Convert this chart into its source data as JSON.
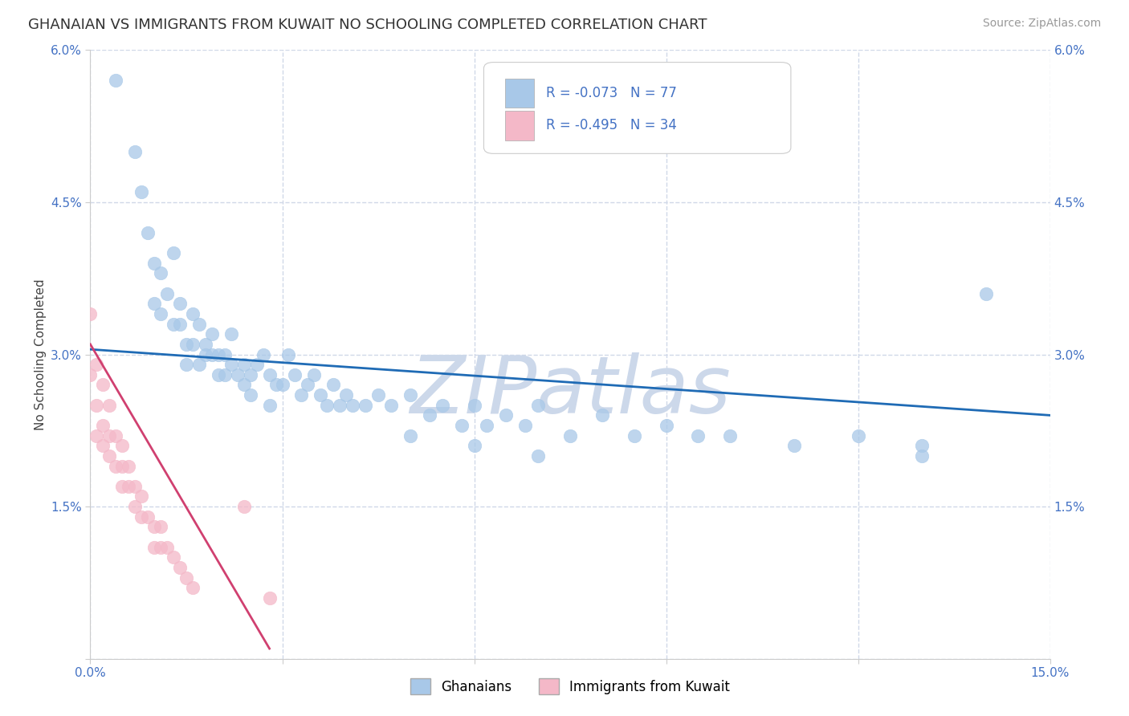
{
  "title": "GHANAIAN VS IMMIGRANTS FROM KUWAIT NO SCHOOLING COMPLETED CORRELATION CHART",
  "source": "Source: ZipAtlas.com",
  "ylabel": "No Schooling Completed",
  "xlim": [
    0,
    0.15
  ],
  "ylim": [
    0,
    0.06
  ],
  "xticks": [
    0.0,
    0.03,
    0.06,
    0.09,
    0.12,
    0.15
  ],
  "xtick_labels": [
    "0.0%",
    "",
    "",
    "",
    "",
    "15.0%"
  ],
  "yticks": [
    0.0,
    0.015,
    0.03,
    0.045,
    0.06
  ],
  "ytick_labels": [
    "",
    "1.5%",
    "3.0%",
    "4.5%",
    "6.0%"
  ],
  "blue_color": "#a8c8e8",
  "pink_color": "#f4b8c8",
  "trend_blue": "#1f6bb5",
  "trend_pink": "#d04070",
  "watermark": "ZIPatlas",
  "watermark_color": "#ccd8ea",
  "blue_x": [
    0.004,
    0.007,
    0.008,
    0.009,
    0.01,
    0.01,
    0.011,
    0.011,
    0.012,
    0.013,
    0.013,
    0.014,
    0.014,
    0.015,
    0.015,
    0.016,
    0.016,
    0.017,
    0.017,
    0.018,
    0.018,
    0.019,
    0.019,
    0.02,
    0.02,
    0.021,
    0.021,
    0.022,
    0.022,
    0.023,
    0.024,
    0.024,
    0.025,
    0.025,
    0.026,
    0.027,
    0.028,
    0.028,
    0.029,
    0.03,
    0.031,
    0.032,
    0.033,
    0.034,
    0.035,
    0.036,
    0.037,
    0.038,
    0.039,
    0.04,
    0.041,
    0.043,
    0.045,
    0.047,
    0.05,
    0.053,
    0.055,
    0.058,
    0.06,
    0.062,
    0.065,
    0.068,
    0.07,
    0.075,
    0.08,
    0.085,
    0.09,
    0.095,
    0.1,
    0.11,
    0.12,
    0.13,
    0.14,
    0.05,
    0.06,
    0.07,
    0.13
  ],
  "blue_y": [
    0.057,
    0.05,
    0.046,
    0.042,
    0.039,
    0.035,
    0.034,
    0.038,
    0.036,
    0.04,
    0.033,
    0.033,
    0.035,
    0.031,
    0.029,
    0.034,
    0.031,
    0.033,
    0.029,
    0.031,
    0.03,
    0.03,
    0.032,
    0.03,
    0.028,
    0.03,
    0.028,
    0.032,
    0.029,
    0.028,
    0.029,
    0.027,
    0.028,
    0.026,
    0.029,
    0.03,
    0.028,
    0.025,
    0.027,
    0.027,
    0.03,
    0.028,
    0.026,
    0.027,
    0.028,
    0.026,
    0.025,
    0.027,
    0.025,
    0.026,
    0.025,
    0.025,
    0.026,
    0.025,
    0.026,
    0.024,
    0.025,
    0.023,
    0.025,
    0.023,
    0.024,
    0.023,
    0.025,
    0.022,
    0.024,
    0.022,
    0.023,
    0.022,
    0.022,
    0.021,
    0.022,
    0.021,
    0.036,
    0.022,
    0.021,
    0.02,
    0.02
  ],
  "pink_x": [
    0.0,
    0.0,
    0.001,
    0.001,
    0.001,
    0.002,
    0.002,
    0.002,
    0.003,
    0.003,
    0.003,
    0.004,
    0.004,
    0.005,
    0.005,
    0.005,
    0.006,
    0.006,
    0.007,
    0.007,
    0.008,
    0.008,
    0.009,
    0.01,
    0.01,
    0.011,
    0.011,
    0.012,
    0.013,
    0.014,
    0.015,
    0.016,
    0.024,
    0.028
  ],
  "pink_y": [
    0.034,
    0.028,
    0.029,
    0.025,
    0.022,
    0.027,
    0.023,
    0.021,
    0.025,
    0.022,
    0.02,
    0.022,
    0.019,
    0.021,
    0.019,
    0.017,
    0.019,
    0.017,
    0.017,
    0.015,
    0.016,
    0.014,
    0.014,
    0.013,
    0.011,
    0.013,
    0.011,
    0.011,
    0.01,
    0.009,
    0.008,
    0.007,
    0.015,
    0.006
  ],
  "blue_trend_x": [
    0.0,
    0.15
  ],
  "blue_trend_y": [
    0.0305,
    0.024
  ],
  "pink_trend_x": [
    0.0,
    0.028
  ],
  "pink_trend_y": [
    0.031,
    0.001
  ],
  "bg_color": "#ffffff",
  "grid_color": "#d0d8e8",
  "title_fontsize": 13,
  "axis_label_fontsize": 11,
  "tick_fontsize": 11,
  "legend_fontsize": 12
}
